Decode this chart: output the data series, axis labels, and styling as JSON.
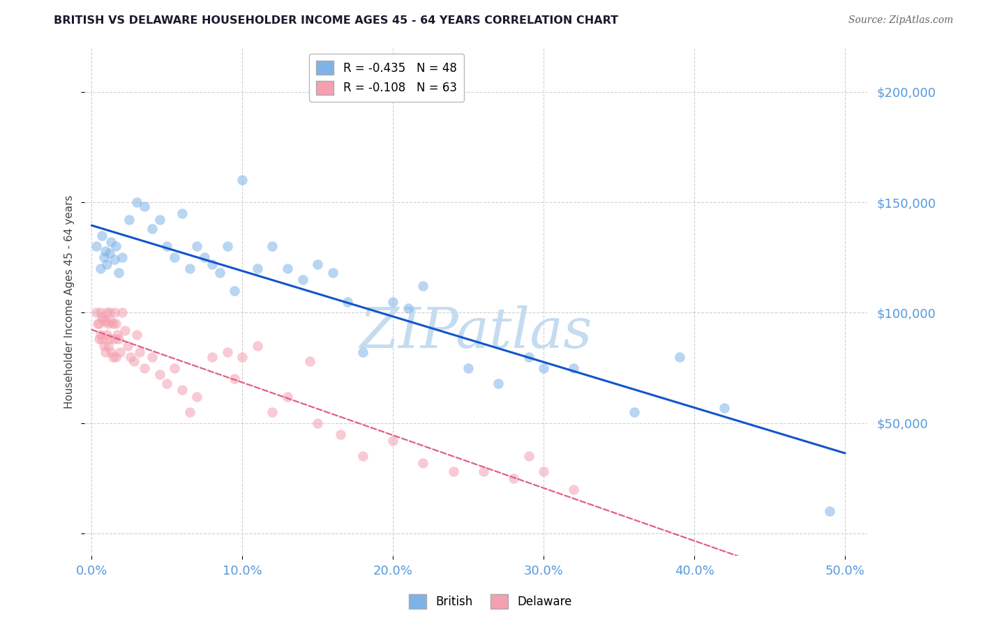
{
  "title": "BRITISH VS DELAWARE HOUSEHOLDER INCOME AGES 45 - 64 YEARS CORRELATION CHART",
  "source": "Source: ZipAtlas.com",
  "ylabel": "Householder Income Ages 45 - 64 years",
  "xlabel_ticks": [
    "0.0%",
    "10.0%",
    "20.0%",
    "30.0%",
    "40.0%",
    "50.0%"
  ],
  "xlabel_vals": [
    0.0,
    0.1,
    0.2,
    0.3,
    0.4,
    0.5
  ],
  "ylabel_vals": [
    0,
    50000,
    100000,
    150000,
    200000
  ],
  "ylim": [
    -10000,
    220000
  ],
  "xlim": [
    -0.005,
    0.515
  ],
  "british_R": "-0.435",
  "british_N": "48",
  "delaware_R": "-0.108",
  "delaware_N": "63",
  "british_color": "#7EB3E8",
  "delaware_color": "#F4A0B0",
  "british_line_color": "#1155CC",
  "delaware_line_color": "#E06080",
  "legend_label_british": "British",
  "legend_label_delaware": "Delaware",
  "watermark": "ZIPatlas",
  "watermark_color": "#C5DCF0",
  "grid_color": "#CCCCCC",
  "right_axis_color": "#5599DD",
  "bottom_axis_color": "#5599DD",
  "british_x": [
    0.003,
    0.006,
    0.007,
    0.008,
    0.009,
    0.01,
    0.012,
    0.013,
    0.015,
    0.016,
    0.018,
    0.02,
    0.025,
    0.03,
    0.035,
    0.04,
    0.045,
    0.05,
    0.055,
    0.06,
    0.065,
    0.07,
    0.075,
    0.08,
    0.085,
    0.09,
    0.095,
    0.1,
    0.11,
    0.12,
    0.13,
    0.14,
    0.15,
    0.16,
    0.17,
    0.18,
    0.2,
    0.21,
    0.22,
    0.25,
    0.27,
    0.29,
    0.3,
    0.32,
    0.36,
    0.39,
    0.42,
    0.49
  ],
  "british_y": [
    130000,
    120000,
    135000,
    125000,
    128000,
    122000,
    127000,
    132000,
    124000,
    130000,
    118000,
    125000,
    142000,
    150000,
    148000,
    138000,
    142000,
    130000,
    125000,
    145000,
    120000,
    130000,
    125000,
    122000,
    118000,
    130000,
    110000,
    160000,
    120000,
    130000,
    120000,
    115000,
    122000,
    118000,
    105000,
    82000,
    105000,
    102000,
    112000,
    75000,
    68000,
    80000,
    75000,
    75000,
    55000,
    80000,
    57000,
    10000
  ],
  "delaware_x": [
    0.003,
    0.004,
    0.005,
    0.005,
    0.006,
    0.006,
    0.007,
    0.007,
    0.008,
    0.008,
    0.009,
    0.009,
    0.01,
    0.01,
    0.011,
    0.011,
    0.012,
    0.012,
    0.013,
    0.013,
    0.014,
    0.014,
    0.015,
    0.015,
    0.016,
    0.016,
    0.017,
    0.018,
    0.019,
    0.02,
    0.022,
    0.024,
    0.026,
    0.028,
    0.03,
    0.032,
    0.035,
    0.04,
    0.045,
    0.05,
    0.055,
    0.06,
    0.065,
    0.07,
    0.08,
    0.09,
    0.095,
    0.1,
    0.11,
    0.12,
    0.13,
    0.145,
    0.15,
    0.165,
    0.18,
    0.2,
    0.22,
    0.24,
    0.26,
    0.28,
    0.29,
    0.3,
    0.32
  ],
  "delaware_y": [
    100000,
    95000,
    95000,
    88000,
    100000,
    90000,
    98000,
    88000,
    97000,
    85000,
    96000,
    82000,
    100000,
    90000,
    95000,
    85000,
    100000,
    88000,
    96000,
    82000,
    95000,
    80000,
    100000,
    88000,
    95000,
    80000,
    90000,
    88000,
    82000,
    100000,
    92000,
    85000,
    80000,
    78000,
    90000,
    82000,
    75000,
    80000,
    72000,
    68000,
    75000,
    65000,
    55000,
    62000,
    80000,
    82000,
    70000,
    80000,
    85000,
    55000,
    62000,
    78000,
    50000,
    45000,
    35000,
    42000,
    32000,
    28000,
    28000,
    25000,
    35000,
    28000,
    20000
  ]
}
